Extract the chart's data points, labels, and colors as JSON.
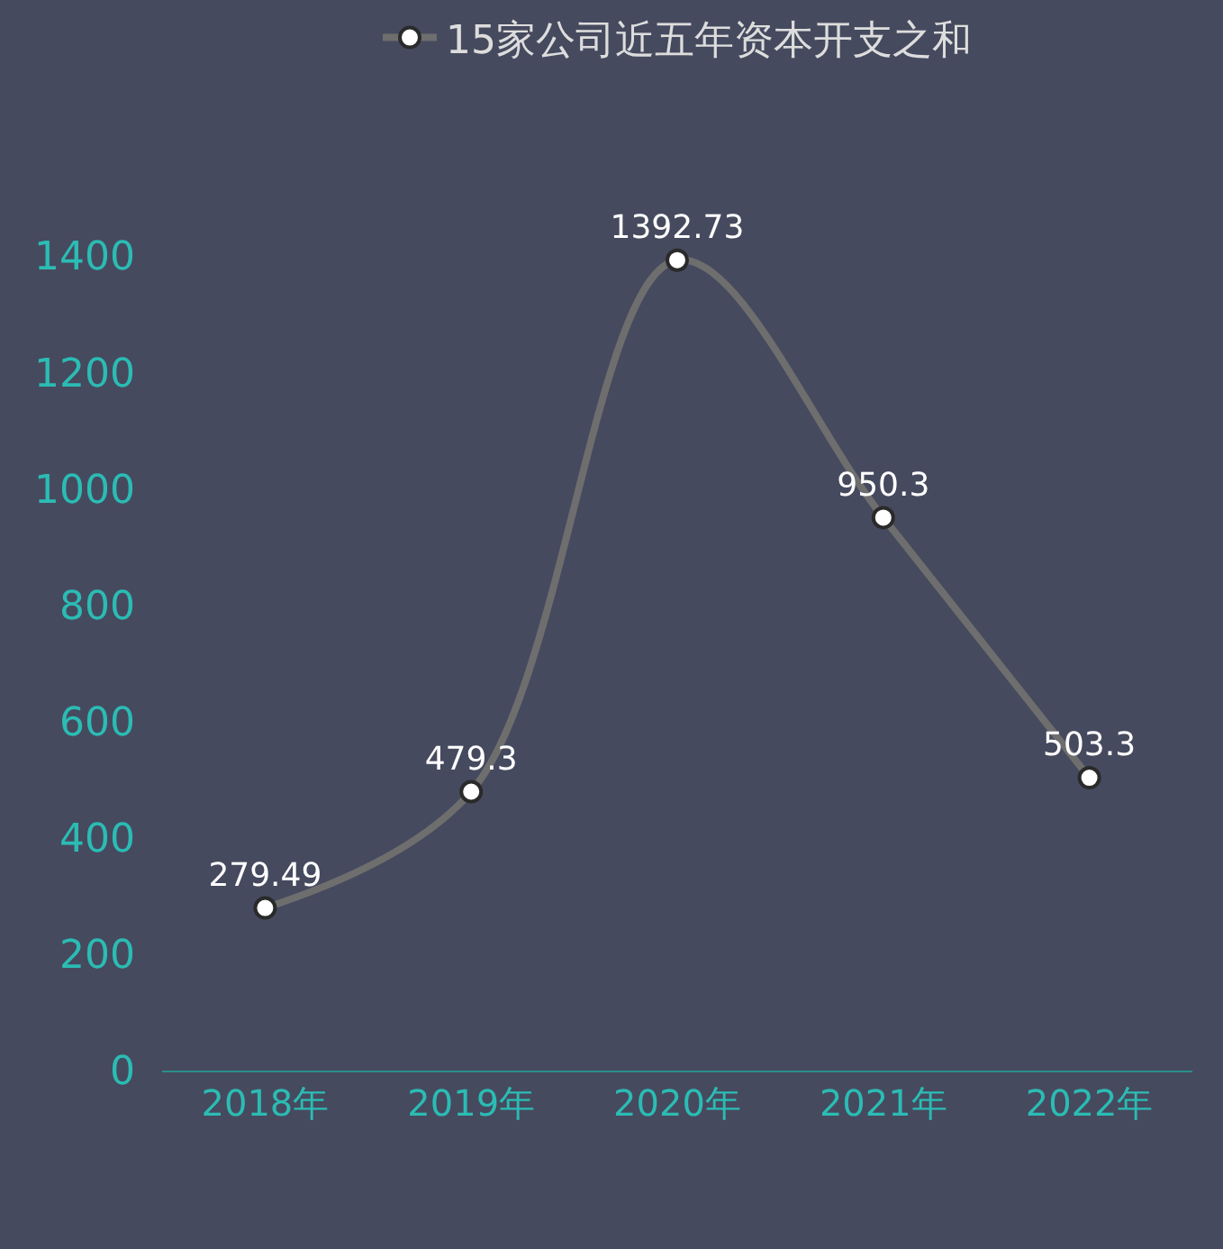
{
  "chart_data": {
    "type": "line",
    "categories": [
      "2018年",
      "2019年",
      "2020年",
      "2021年",
      "2022年"
    ],
    "series": [
      {
        "name": "15家公司近五年资本开支之和",
        "color": "#6e6e6e",
        "values": [
          279.49,
          479.3,
          1392.73,
          950.3,
          503.3
        ]
      }
    ],
    "ylim": [
      0,
      1400
    ],
    "yticks": [
      0,
      200,
      400,
      600,
      800,
      1000,
      1200,
      1400
    ],
    "grid": false,
    "legend": "top",
    "marker": "circle",
    "line_style": "solid",
    "data_labels": true
  }
}
